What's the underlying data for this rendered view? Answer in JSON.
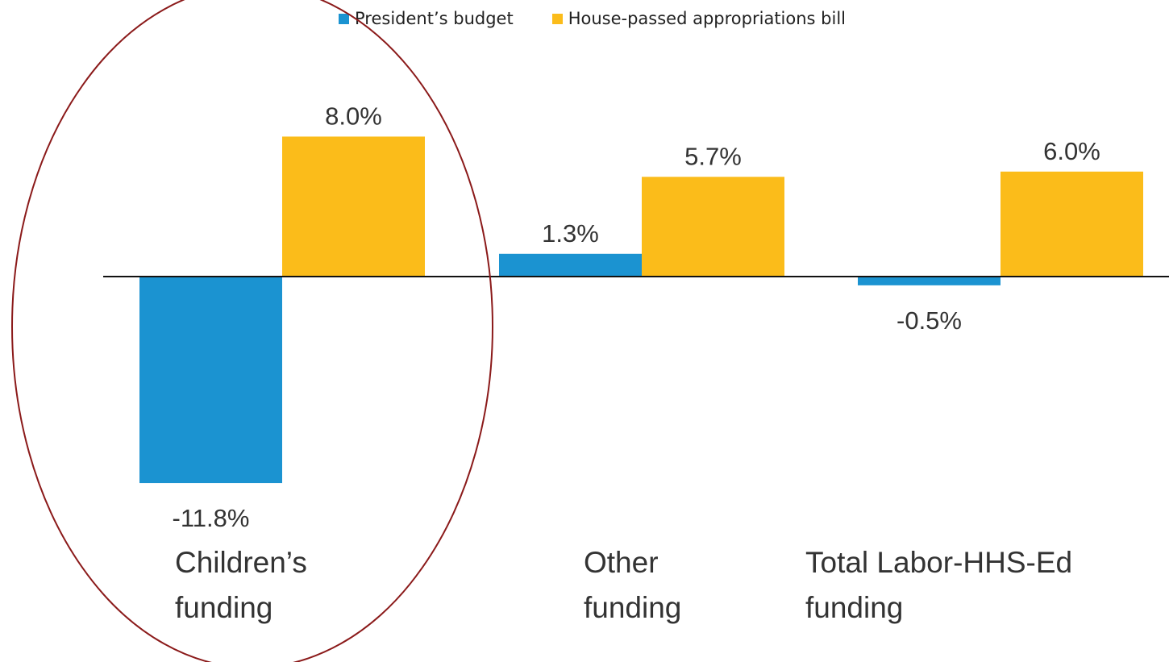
{
  "chart_data": {
    "type": "bar",
    "categories": [
      [
        "Children’s",
        "funding"
      ],
      [
        "Other",
        "funding"
      ],
      [
        "Total Labor-HHS-Ed",
        "funding"
      ]
    ],
    "series": [
      {
        "name": "President’s budget",
        "color": "#1b93d1",
        "values": [
          -11.8,
          1.3,
          -0.5
        ]
      },
      {
        "name": "House-passed appropriations bill",
        "color": "#fbbc1a",
        "values": [
          8.0,
          5.7,
          6.0
        ]
      }
    ],
    "data_labels": [
      [
        "-11.8%",
        "1.3%",
        "-0.5%"
      ],
      [
        "8.0%",
        "5.7%",
        "6.0%"
      ]
    ],
    "value_unit": "%",
    "legend_position": "top",
    "grid": false,
    "highlight": {
      "category_index": 0,
      "shape": "ellipse",
      "color": "#8b1a1a"
    }
  }
}
